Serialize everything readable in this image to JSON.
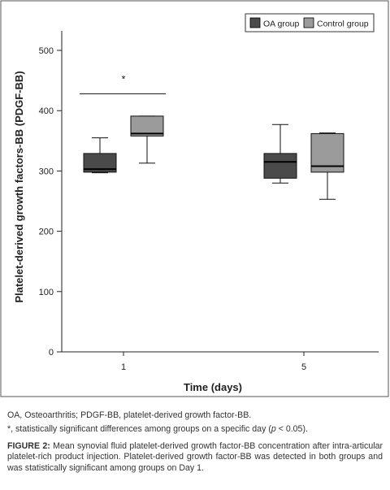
{
  "chart_data": {
    "type": "box",
    "title": "",
    "xlabel": "Time (days)",
    "ylabel": "Platelet-derived growth factors-BB (PDGF-BB)",
    "categories": [
      "1",
      "5"
    ],
    "ylim": [
      0,
      500
    ],
    "yticks": [
      "0",
      "100",
      "200",
      "300",
      "400",
      "500"
    ],
    "grid": false,
    "legend_position": "top-right",
    "series": [
      {
        "name": "OA group",
        "color": "#4a4a4a",
        "boxes": [
          {
            "min": 297,
            "q1": 298,
            "median": 303,
            "q3": 329,
            "max": 355
          },
          {
            "min": 280,
            "q1": 288,
            "median": 315,
            "q3": 329,
            "max": 377
          }
        ]
      },
      {
        "name": "Control group",
        "color": "#9b9b9b",
        "boxes": [
          {
            "min": 313,
            "q1": 358,
            "median": 362,
            "q3": 391,
            "max": 391
          },
          {
            "min": 253,
            "q1": 298,
            "median": 308,
            "q3": 362,
            "max": 363
          }
        ]
      }
    ],
    "annotation": {
      "text": "*",
      "category": "1"
    }
  },
  "footnotes": {
    "abbreviations": "OA, Osteoarthritis; PDGF-BB, platelet-derived growth factor-BB.",
    "significance_prefix": "*, statistically significant differences among groups on a specific day (",
    "significance_p": "p",
    "significance_suffix": " < 0.05)."
  },
  "caption": {
    "label": "FIGURE 2:",
    "text": " Mean synovial fluid platelet-derived growth factor-BB concentration after intra-articular platelet-rich product injection. Platelet-derived growth factor-BB was detected in both groups and was statistically significant among groups on Day 1."
  }
}
